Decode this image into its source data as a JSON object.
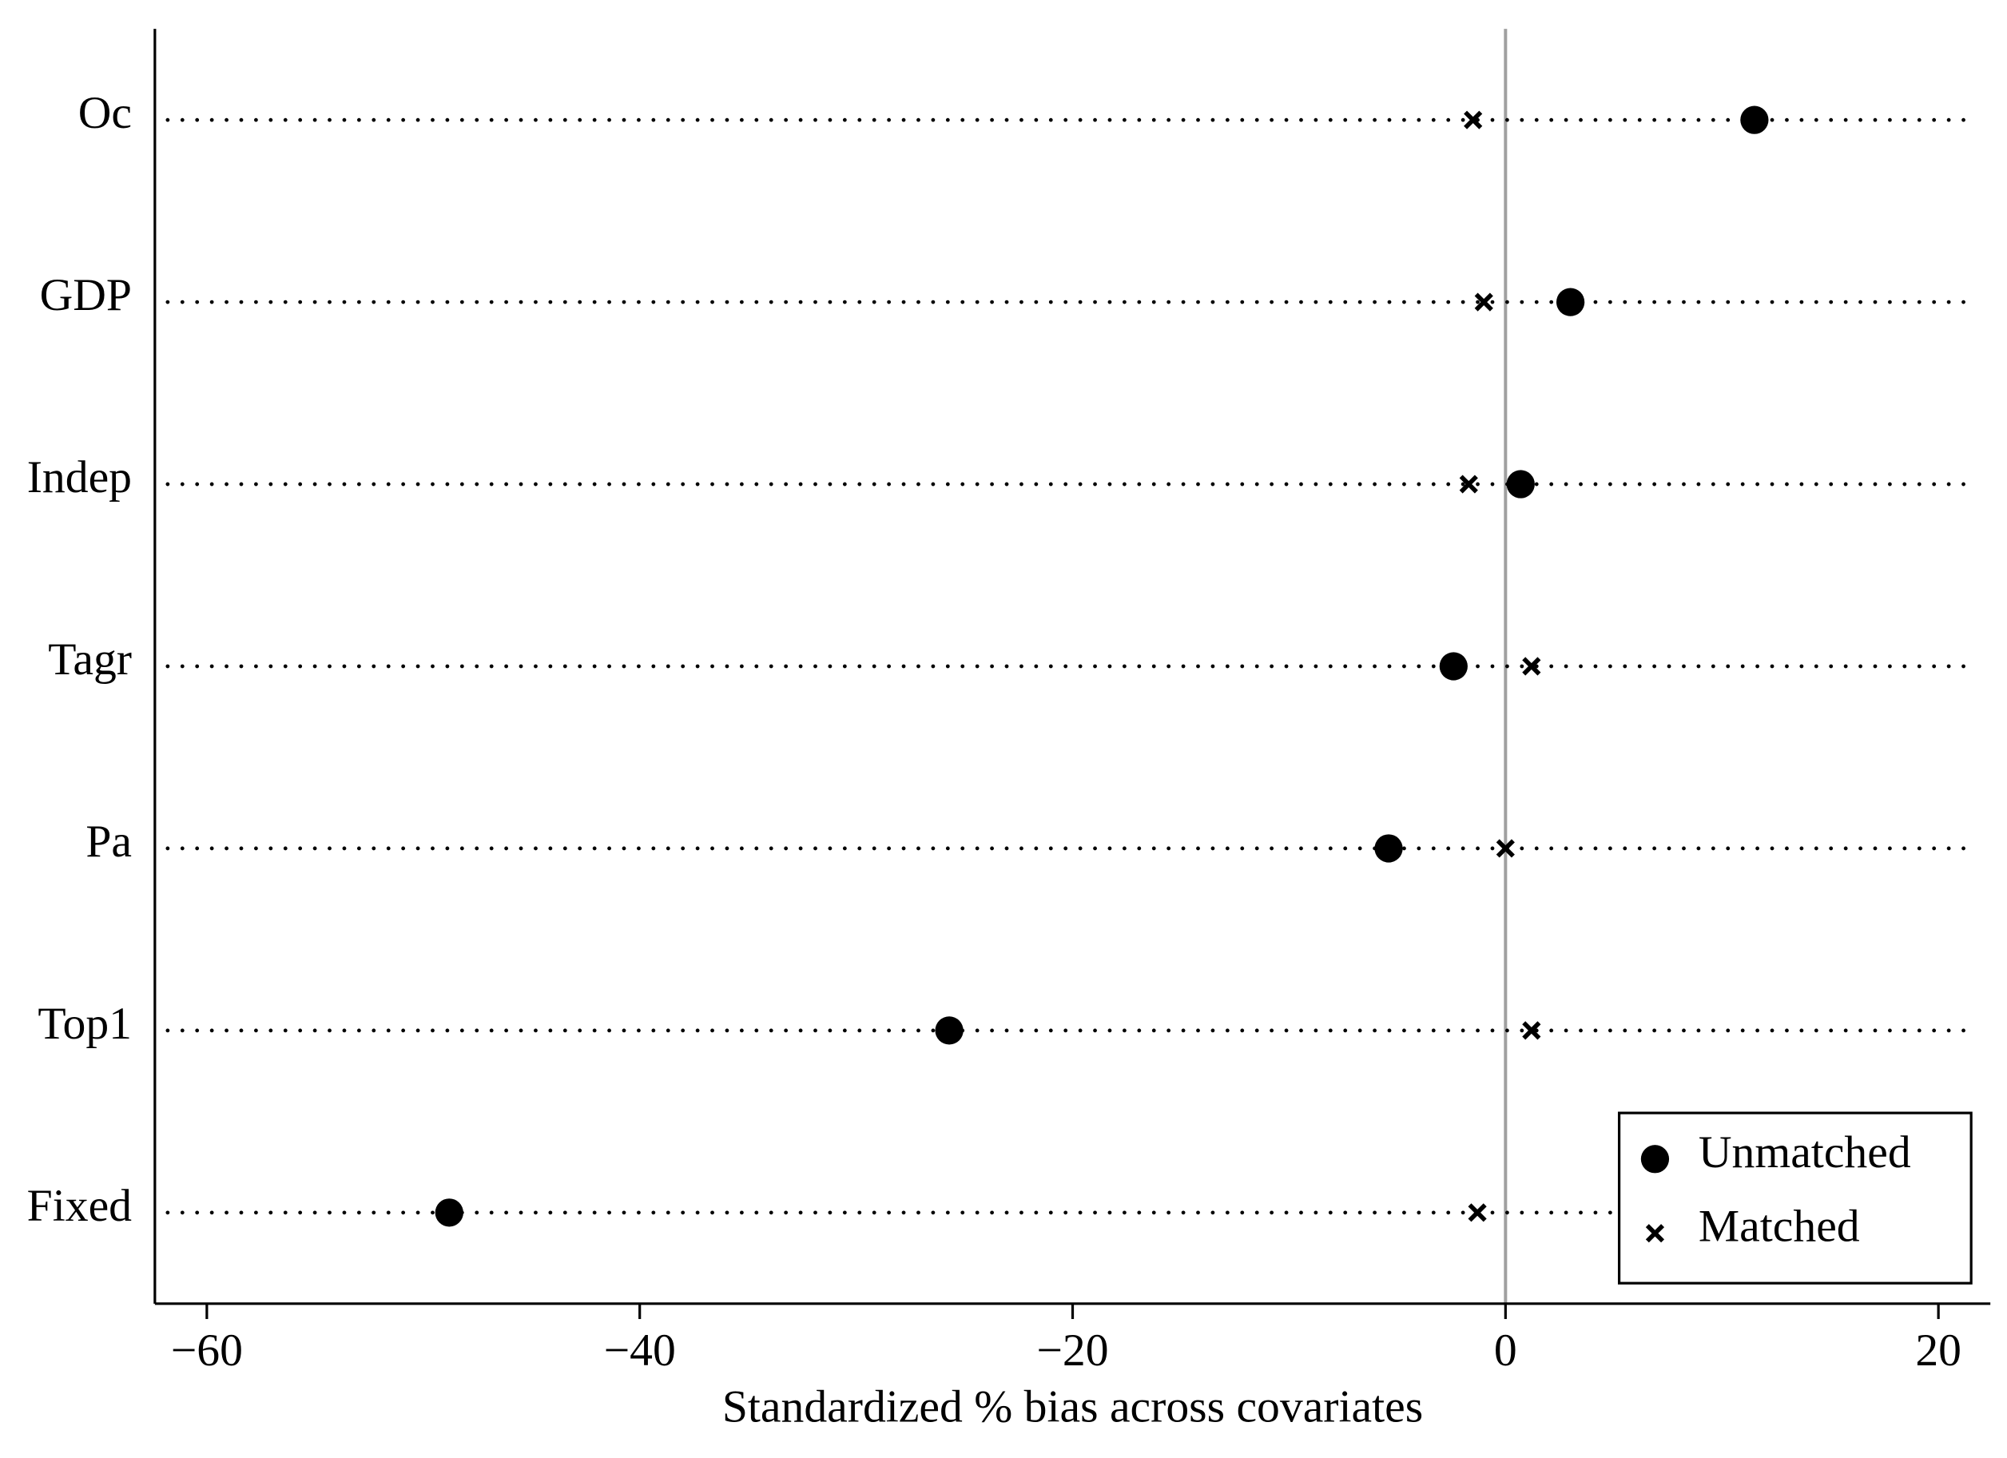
{
  "chart_data": {
    "type": "dot",
    "xlabel": "Standardized % bias across covariates",
    "categories": [
      "Oc",
      "GDP",
      "Indep",
      "Tagr",
      "Pa",
      "Top1",
      "Fixed"
    ],
    "series": [
      {
        "name": "Unmatched",
        "color": "#000000",
        "marker": "circle",
        "values": [
          11.5,
          3.0,
          0.7,
          -2.4,
          -5.4,
          -25.7,
          -48.8
        ]
      },
      {
        "name": "Matched",
        "color": "#000000",
        "marker": "x",
        "values": [
          -1.5,
          -1.0,
          -1.7,
          1.2,
          0,
          1.2,
          -1.3
        ]
      }
    ],
    "xlim": [
      -62.4,
      22.4
    ],
    "xticks": [
      {
        "value": -60,
        "label": "−60"
      },
      {
        "value": -40,
        "label": "−40"
      },
      {
        "value": -20,
        "label": "−20"
      },
      0,
      20
    ],
    "xline": 0,
    "legend": "lower right"
  }
}
